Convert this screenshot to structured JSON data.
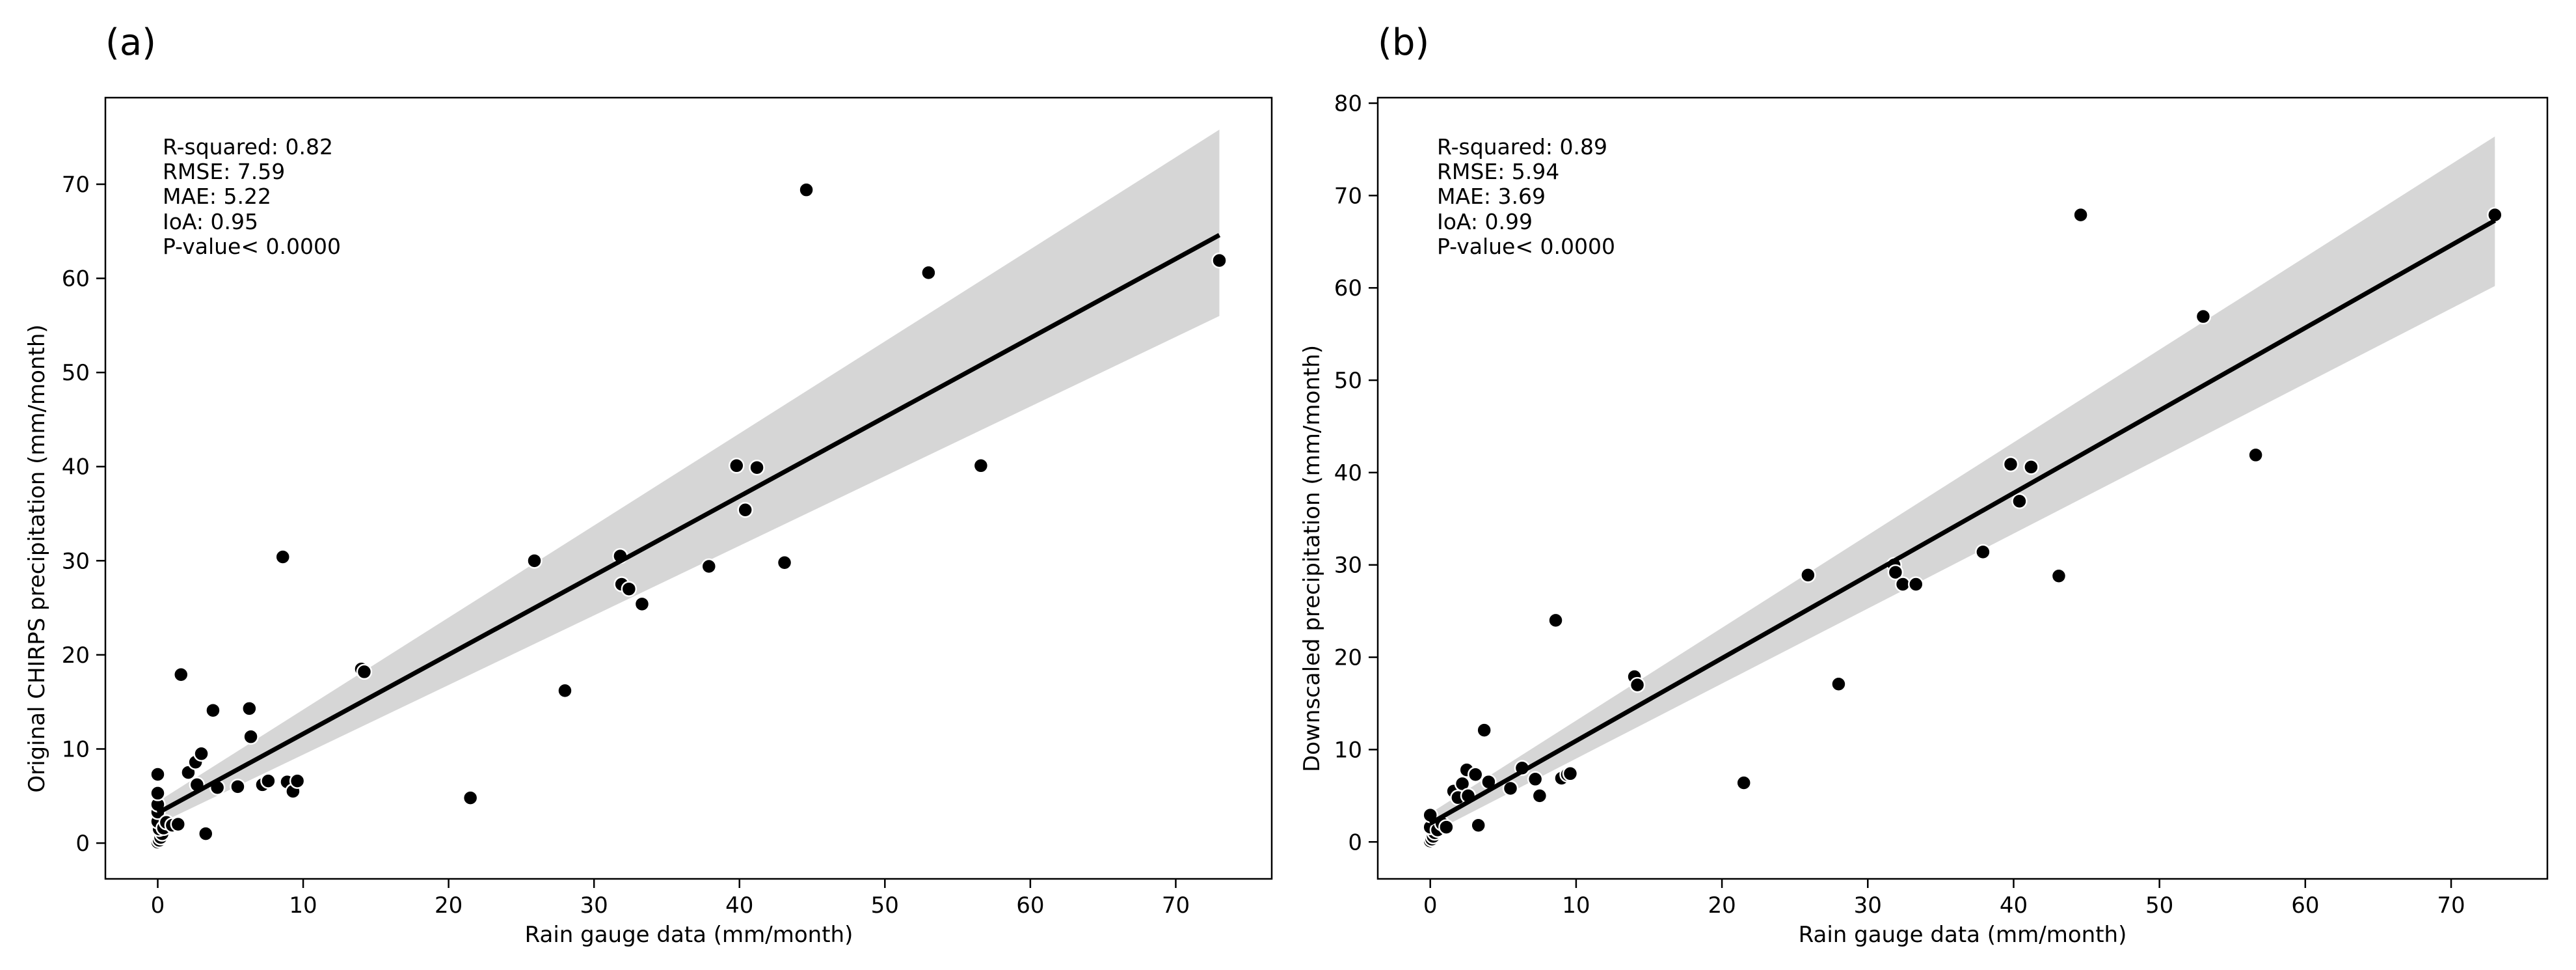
{
  "chart_data": [
    {
      "type": "scatter",
      "panel_label": "(a)",
      "xlabel": "Rain gauge data (mm/month)",
      "ylabel": "Original CHIRPS precipitation (mm/month)",
      "xlim": [
        -3.6,
        76.6
      ],
      "ylim": [
        -3.8,
        79.2
      ],
      "xticks": [
        0,
        10,
        20,
        30,
        40,
        50,
        60,
        70
      ],
      "yticks": [
        0,
        10,
        20,
        30,
        40,
        50,
        60,
        70
      ],
      "stats": [
        "R-squared: 0.82",
        "RMSE: 7.59",
        "MAE: 5.22",
        "IoA: 0.95",
        "P-value< 0.0000"
      ],
      "regression": {
        "x": [
          0,
          73
        ],
        "y": [
          3.2,
          64.6
        ]
      },
      "confidence_band": {
        "x": [
          0,
          73
        ],
        "lower": [
          2.0,
          56.0
        ],
        "upper": [
          4.4,
          75.8
        ]
      },
      "points": [
        [
          0.0,
          0.1
        ],
        [
          0.1,
          0.3
        ],
        [
          0.2,
          0.6
        ],
        [
          0.3,
          1.0
        ],
        [
          0.1,
          1.5
        ],
        [
          0.0,
          2.3
        ],
        [
          0.0,
          3.3
        ],
        [
          0.0,
          4.1
        ],
        [
          0.0,
          5.3
        ],
        [
          0.0,
          7.3
        ],
        [
          0.4,
          1.6
        ],
        [
          0.6,
          2.2
        ],
        [
          1.0,
          1.9
        ],
        [
          1.4,
          2.0
        ],
        [
          1.6,
          17.9
        ],
        [
          2.1,
          7.5
        ],
        [
          2.6,
          8.6
        ],
        [
          3.0,
          9.5
        ],
        [
          2.7,
          6.2
        ],
        [
          3.3,
          1.0
        ],
        [
          3.8,
          14.1
        ],
        [
          4.1,
          5.9
        ],
        [
          5.5,
          6.0
        ],
        [
          6.3,
          14.3
        ],
        [
          6.4,
          11.3
        ],
        [
          7.2,
          6.2
        ],
        [
          7.6,
          6.6
        ],
        [
          8.6,
          30.4
        ],
        [
          8.9,
          6.5
        ],
        [
          9.3,
          5.5
        ],
        [
          9.6,
          6.6
        ],
        [
          14.0,
          18.5
        ],
        [
          14.2,
          18.2
        ],
        [
          21.5,
          4.8
        ],
        [
          25.9,
          30.0
        ],
        [
          28.0,
          16.2
        ],
        [
          31.8,
          30.5
        ],
        [
          31.9,
          27.5
        ],
        [
          32.4,
          27.0
        ],
        [
          33.3,
          25.4
        ],
        [
          37.9,
          29.4
        ],
        [
          39.8,
          40.1
        ],
        [
          40.4,
          35.4
        ],
        [
          41.2,
          39.9
        ],
        [
          43.1,
          29.8
        ],
        [
          44.6,
          69.4
        ],
        [
          53.0,
          60.6
        ],
        [
          56.6,
          40.1
        ],
        [
          73.0,
          61.9
        ]
      ]
    },
    {
      "type": "scatter",
      "panel_label": "(b)",
      "xlabel": "Rain gauge data (mm/month)",
      "ylabel": "Downscaled precipitation (mm/month)",
      "xlim": [
        -3.6,
        76.6
      ],
      "ylim": [
        -4.0,
        80.6
      ],
      "xticks": [
        0,
        10,
        20,
        30,
        40,
        50,
        60,
        70
      ],
      "yticks": [
        0,
        10,
        20,
        30,
        40,
        50,
        60,
        70,
        80
      ],
      "stats": [
        "R-squared: 0.89",
        "RMSE: 5.94",
        "MAE: 3.69",
        "IoA: 0.99",
        "P-value< 0.0000"
      ],
      "regression": {
        "x": [
          0,
          73
        ],
        "y": [
          2.0,
          67.3
        ]
      },
      "confidence_band": {
        "x": [
          0,
          73
        ],
        "lower": [
          0.9,
          60.2
        ],
        "upper": [
          3.1,
          76.4
        ]
      },
      "points": [
        [
          0.0,
          0.1
        ],
        [
          0.1,
          0.3
        ],
        [
          0.2,
          0.6
        ],
        [
          0.3,
          1.0
        ],
        [
          0.0,
          1.6
        ],
        [
          0.0,
          2.9
        ],
        [
          0.5,
          1.3
        ],
        [
          0.8,
          2.0
        ],
        [
          1.1,
          1.6
        ],
        [
          1.6,
          5.5
        ],
        [
          1.9,
          4.8
        ],
        [
          2.2,
          6.3
        ],
        [
          2.5,
          7.8
        ],
        [
          2.6,
          5.0
        ],
        [
          3.1,
          7.3
        ],
        [
          3.3,
          1.8
        ],
        [
          3.7,
          12.1
        ],
        [
          4.0,
          6.5
        ],
        [
          5.5,
          5.8
        ],
        [
          6.3,
          8.0
        ],
        [
          7.2,
          6.8
        ],
        [
          7.5,
          5.0
        ],
        [
          8.6,
          24.0
        ],
        [
          9.0,
          6.9
        ],
        [
          9.4,
          7.3
        ],
        [
          9.6,
          7.4
        ],
        [
          14.0,
          17.9
        ],
        [
          14.2,
          17.0
        ],
        [
          21.5,
          6.4
        ],
        [
          25.9,
          28.9
        ],
        [
          28.0,
          17.1
        ],
        [
          31.8,
          30.0
        ],
        [
          31.9,
          29.2
        ],
        [
          32.4,
          27.9
        ],
        [
          33.3,
          27.9
        ],
        [
          37.9,
          31.4
        ],
        [
          39.8,
          40.9
        ],
        [
          40.4,
          36.9
        ],
        [
          41.2,
          40.6
        ],
        [
          43.1,
          28.8
        ],
        [
          44.6,
          67.9
        ],
        [
          53.0,
          56.9
        ],
        [
          56.6,
          41.9
        ],
        [
          73.0,
          67.9
        ]
      ]
    }
  ]
}
